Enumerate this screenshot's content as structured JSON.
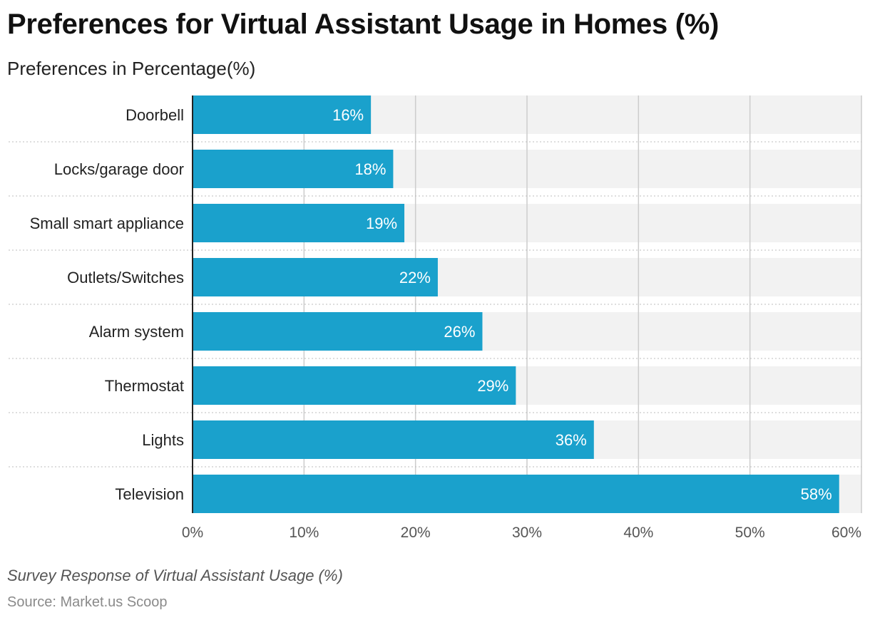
{
  "header": {
    "title": "Preferences for Virtual Assistant Usage in Homes (%)",
    "subtitle": "Preferences in Percentage(%)"
  },
  "footer": {
    "note": "Survey Response of Virtual Assistant Usage (%)",
    "source": "Source: Market.us Scoop"
  },
  "colors": {
    "bar": "#1aa1cc",
    "track": "#f2f2f2",
    "grid": "#cccccc",
    "axis": "#222222",
    "bar_label": "#ffffff"
  },
  "chart_data": {
    "type": "bar",
    "orientation": "horizontal",
    "title": "Preferences for Virtual Assistant Usage in Homes (%)",
    "subtitle": "Preferences in Percentage(%)",
    "categories": [
      "Doorbell",
      "Locks/garage door",
      "Small smart appliance",
      "Outlets/Switches",
      "Alarm system",
      "Thermostat",
      "Lights",
      "Television"
    ],
    "values": [
      16,
      18,
      19,
      22,
      26,
      29,
      36,
      58
    ],
    "value_labels": [
      "16%",
      "18%",
      "19%",
      "22%",
      "26%",
      "29%",
      "36%",
      "58%"
    ],
    "xlim": [
      0,
      60
    ],
    "xticks": [
      0,
      10,
      20,
      30,
      40,
      50,
      60
    ],
    "xtick_labels": [
      "0%",
      "10%",
      "20%",
      "30%",
      "40%",
      "50%",
      "60%"
    ],
    "grid": true,
    "legend": "none"
  }
}
